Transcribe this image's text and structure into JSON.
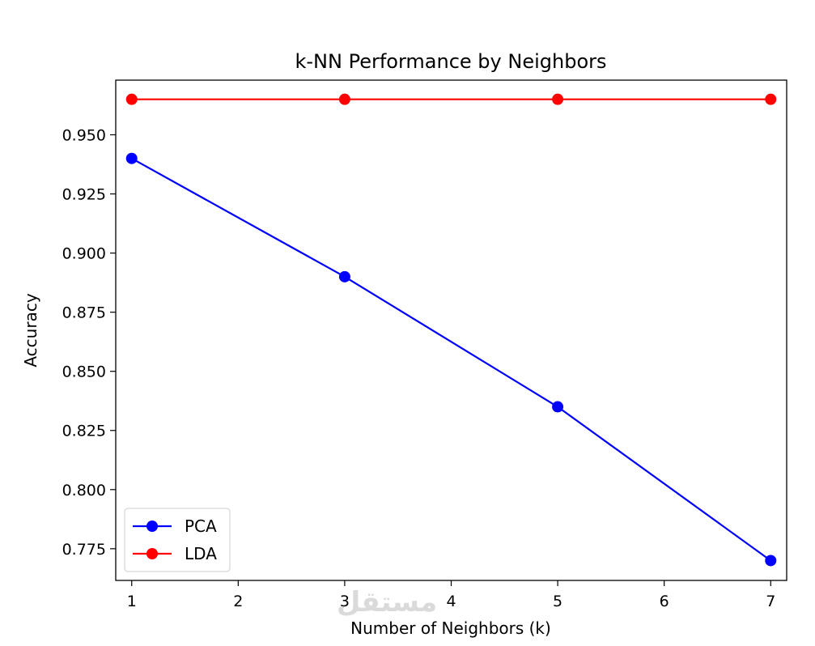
{
  "chart_data": {
    "type": "line",
    "title": "k-NN Performance by Neighbors",
    "xlabel": "Number of Neighbors (k)",
    "ylabel": "Accuracy",
    "xlim": [
      0.85,
      7.15
    ],
    "ylim": [
      0.7616,
      0.9731
    ],
    "x_ticks": [
      1,
      2,
      3,
      4,
      5,
      6,
      7
    ],
    "y_ticks": [
      0.775,
      0.8,
      0.825,
      0.85,
      0.875,
      0.9,
      0.925,
      0.95
    ],
    "y_tick_labels": [
      "0.775",
      "0.800",
      "0.825",
      "0.850",
      "0.875",
      "0.900",
      "0.925",
      "0.950"
    ],
    "x": [
      1,
      3,
      5,
      7
    ],
    "series": [
      {
        "name": "PCA",
        "color": "#0000ff",
        "values": [
          0.94,
          0.89,
          0.835,
          0.77
        ]
      },
      {
        "name": "LDA",
        "color": "#ff0000",
        "values": [
          0.965,
          0.965,
          0.965,
          0.965
        ]
      }
    ],
    "legend": "lower-left",
    "grid": false
  },
  "watermark": "مستقل"
}
